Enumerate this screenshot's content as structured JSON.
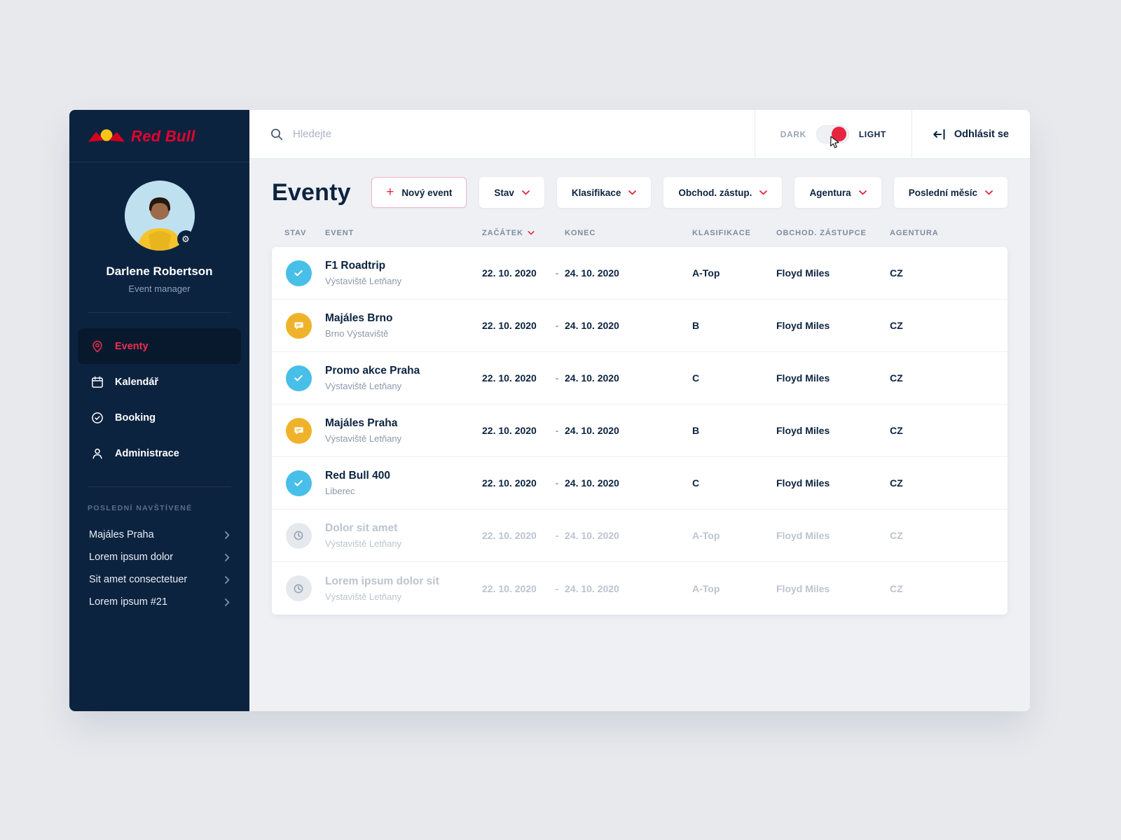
{
  "brand": {
    "wordmark": "Red Bull"
  },
  "topbar": {
    "search_placeholder": "Hledejte",
    "theme_dark_label": "DARK",
    "theme_light_label": "LIGHT",
    "logout_label": "Odhlásit se"
  },
  "sidebar": {
    "user_name": "Darlene Robertson",
    "user_role": "Event manager",
    "nav": [
      {
        "label": "Eventy",
        "icon": "map-pin-icon",
        "active": true
      },
      {
        "label": "Kalendář",
        "icon": "calendar-icon",
        "active": false
      },
      {
        "label": "Booking",
        "icon": "check-circle-icon",
        "active": false
      },
      {
        "label": "Administrace",
        "icon": "user-icon",
        "active": false
      }
    ],
    "recent_title": "Poslední navštívené",
    "recent": [
      "Majáles Praha",
      "Lorem ipsum dolor",
      "Sit amet consectetuer",
      "Lorem ipsum #21"
    ]
  },
  "main": {
    "title": "Eventy",
    "new_event_label": "Nový event",
    "filters": [
      "Stav",
      "Klasifikace",
      "Obchod. zástup.",
      "Agentura",
      "Poslední měsíc"
    ],
    "table": {
      "headers": [
        "Stav",
        "Event",
        "Začátek",
        "Konec",
        "Klasifikace",
        "Obchod. zástupce",
        "Agentura"
      ],
      "date_separator": "-",
      "rows": [
        {
          "status": "approved",
          "icon": "check-circle-icon",
          "name": "F1 Roadtrip",
          "venue": "Výstaviště Letňany",
          "start": "22. 10. 2020",
          "end": "24. 10. 2020",
          "classification": "A-Top",
          "rep": "Floyd Miles",
          "agency": "CZ",
          "muted": false
        },
        {
          "status": "comment",
          "icon": "comment-icon",
          "name": "Majáles Brno",
          "venue": "Brno Výstaviště",
          "start": "22. 10. 2020",
          "end": "24. 10. 2020",
          "classification": "B",
          "rep": "Floyd Miles",
          "agency": "CZ",
          "muted": false
        },
        {
          "status": "approved",
          "icon": "check-circle-icon",
          "name": "Promo akce Praha",
          "venue": "Výstaviště Letňany",
          "start": "22. 10. 2020",
          "end": "24. 10. 2020",
          "classification": "C",
          "rep": "Floyd Miles",
          "agency": "CZ",
          "muted": false
        },
        {
          "status": "comment",
          "icon": "comment-icon",
          "name": "Majáles Praha",
          "venue": "Výstaviště Letňany",
          "start": "22. 10. 2020",
          "end": "24. 10. 2020",
          "classification": "B",
          "rep": "Floyd Miles",
          "agency": "CZ",
          "muted": false
        },
        {
          "status": "approved",
          "icon": "check-circle-icon",
          "name": "Red Bull 400",
          "venue": "Liberec",
          "start": "22. 10. 2020",
          "end": "24. 10. 2020",
          "classification": "C",
          "rep": "Floyd Miles",
          "agency": "CZ",
          "muted": false
        },
        {
          "status": "pending",
          "icon": "clock-icon",
          "name": "Dolor sit amet",
          "venue": "Výstaviště Letňany",
          "start": "22. 10. 2020",
          "end": "24. 10. 2020",
          "classification": "A-Top",
          "rep": "Floyd Miles",
          "agency": "CZ",
          "muted": true
        },
        {
          "status": "pending",
          "icon": "clock-icon",
          "name": "Lorem ipsum dolor sit",
          "venue": "Výstaviště Letňany",
          "start": "22. 10. 2020",
          "end": "24. 10. 2020",
          "classification": "A-Top",
          "rep": "Floyd Miles",
          "agency": "CZ",
          "muted": true
        }
      ]
    }
  },
  "colors": {
    "navy": "#0c2340",
    "accent_red": "#e0243f",
    "status_approved": "#47bfe8",
    "status_comment": "#efb32b",
    "status_pending": "#e5e9ee"
  }
}
